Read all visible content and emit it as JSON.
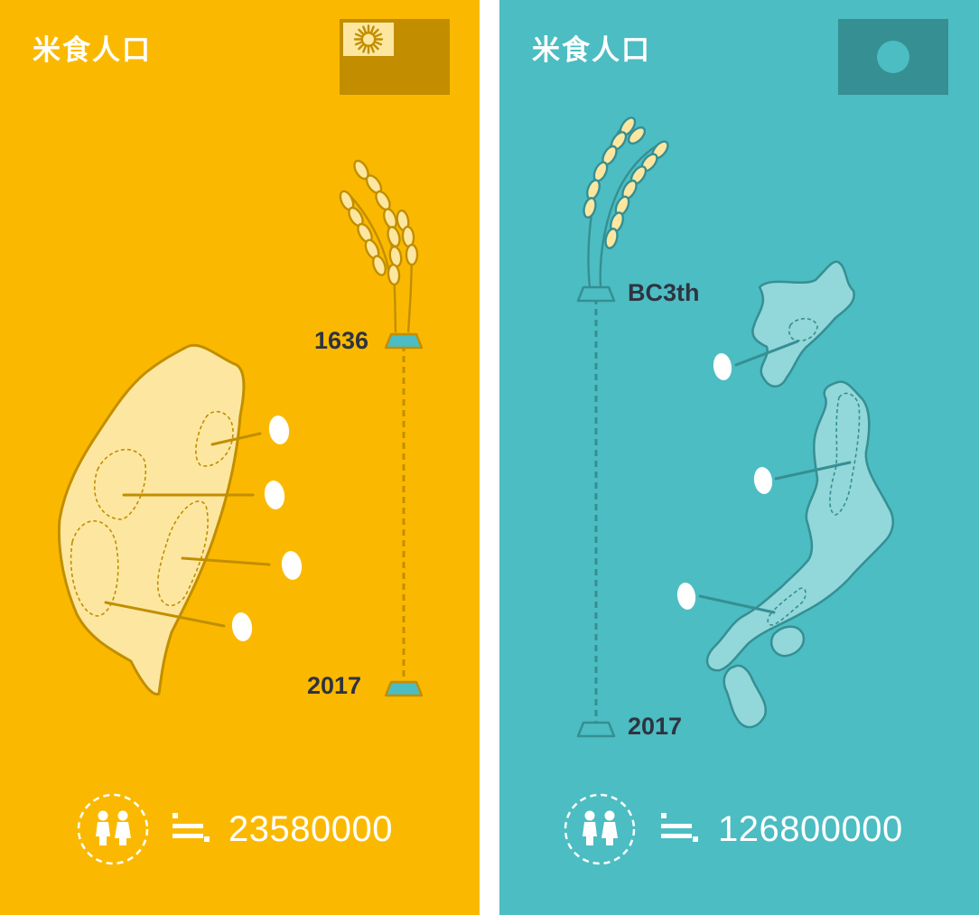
{
  "panels": [
    {
      "id": "taiwan",
      "title": "米食人口",
      "background": "#FAB900",
      "flag": "taiwan-flag-icon",
      "timeline": {
        "start_label": "1636",
        "end_label": "2017"
      },
      "population": {
        "icon": "people-icon",
        "symbol": "approx-equal-icon",
        "value": "23580000"
      }
    },
    {
      "id": "japan",
      "title": "米食人口",
      "background": "#4CBDC2",
      "flag": "japan-flag-icon",
      "timeline": {
        "start_label": "BC3th",
        "end_label": "2017"
      },
      "population": {
        "icon": "people-icon",
        "symbol": "approx-equal-icon",
        "value": "126800000"
      }
    }
  ]
}
